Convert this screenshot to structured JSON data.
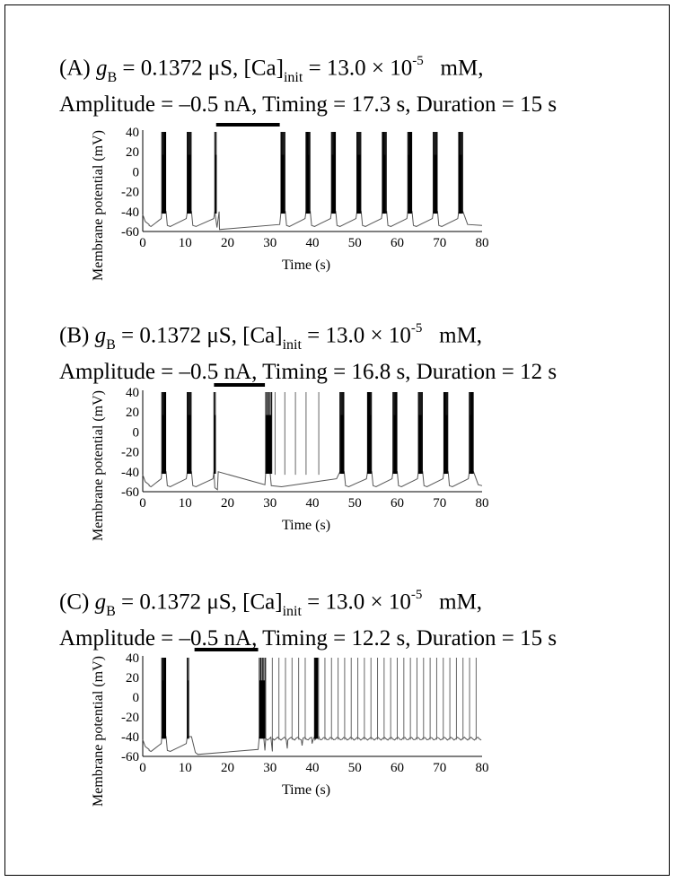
{
  "chart_data": [
    {
      "type": "line",
      "panel_label": "(A)",
      "title_lines": {
        "gb_symbol": "g",
        "gb_sub": "B",
        "gb_value": "= 0.1372 μS, [Ca]",
        "ca_sub": "init",
        "ca_value": "= 13.0 × 10",
        "ca_exp": "-5",
        "ca_unit": "mM,",
        "line2": "Amplitude = –0.5 nA, Timing = 17.3 s, Duration = 15 s"
      },
      "xlabel": "Time (s)",
      "ylabel": "Membrane potential (mV)",
      "xlim": [
        0,
        80
      ],
      "ylim": [
        -60,
        40
      ],
      "xticks": [
        "0",
        "10",
        "20",
        "30",
        "40",
        "50",
        "60",
        "70",
        "80"
      ],
      "yticks": [
        "40",
        "20",
        "0",
        "-20",
        "-40",
        "-60"
      ],
      "stimulus": {
        "start": 17.3,
        "duration": 15,
        "amplitude_nA": -0.5
      },
      "bursts_before": [
        4.5,
        10.5,
        17.0
      ],
      "bursts_after": [
        32.6,
        38.5,
        44.5,
        50.5,
        56.5,
        62.5,
        68.5,
        74.5
      ],
      "baseline_mV": -52,
      "plateau_mV": -40
    },
    {
      "type": "line",
      "panel_label": "(B)",
      "title_lines": {
        "gb_symbol": "g",
        "gb_sub": "B",
        "gb_value": "= 0.1372 μS, [Ca]",
        "ca_sub": "init",
        "ca_value": "= 13.0 × 10",
        "ca_exp": "-5",
        "ca_unit": "mM,",
        "line2": "Amplitude = –0.5 nA, Timing = 16.8 s, Duration = 12 s"
      },
      "xlabel": "Time (s)",
      "ylabel": "Membrane potential (mV)",
      "xlim": [
        0,
        80
      ],
      "ylim": [
        -60,
        40
      ],
      "xticks": [
        "0",
        "10",
        "20",
        "30",
        "40",
        "50",
        "60",
        "70",
        "80"
      ],
      "yticks": [
        "40",
        "20",
        "0",
        "-20",
        "-40",
        "-60"
      ],
      "stimulus": {
        "start": 16.8,
        "duration": 12,
        "amplitude_nA": -0.5
      },
      "bursts_before": [
        4.5,
        10.5,
        16.8
      ],
      "bursts_after": [
        29.0,
        46.5,
        53.0,
        59.0,
        65.0,
        71.0,
        77.0
      ],
      "single_spikes_after": [
        31.2,
        33.5,
        36.0,
        38.5,
        41.5
      ],
      "baseline_mV": -52,
      "plateau_mV": -40
    },
    {
      "type": "line",
      "panel_label": "(C)",
      "title_lines": {
        "gb_symbol": "g",
        "gb_sub": "B",
        "gb_value": "= 0.1372 μS, [Ca]",
        "ca_sub": "init",
        "ca_value": "= 13.0 × 10",
        "ca_exp": "-5",
        "ca_unit": "mM,",
        "line2": "Amplitude = –0.5 nA, Timing = 12.2 s, Duration = 15 s"
      },
      "xlabel": "Time (s)",
      "ylabel": "Membrane potential (mV)",
      "xlim": [
        0,
        80
      ],
      "ylim": [
        -60,
        40
      ],
      "xticks": [
        "0",
        "10",
        "20",
        "30",
        "40",
        "50",
        "60",
        "70",
        "80"
      ],
      "yticks": [
        "40",
        "20",
        "0",
        "-20",
        "-40",
        "-60"
      ],
      "stimulus": {
        "start": 12.2,
        "duration": 15,
        "amplitude_nA": -0.5
      },
      "bursts_before": [
        4.5,
        10.5
      ],
      "bursts_after": [
        27.5,
        40.5
      ],
      "tonic_spiking_after": {
        "start": 29.0,
        "end": 80,
        "interval_s": 1.55
      },
      "baseline_mV": -52,
      "plateau_mV": -40
    }
  ]
}
